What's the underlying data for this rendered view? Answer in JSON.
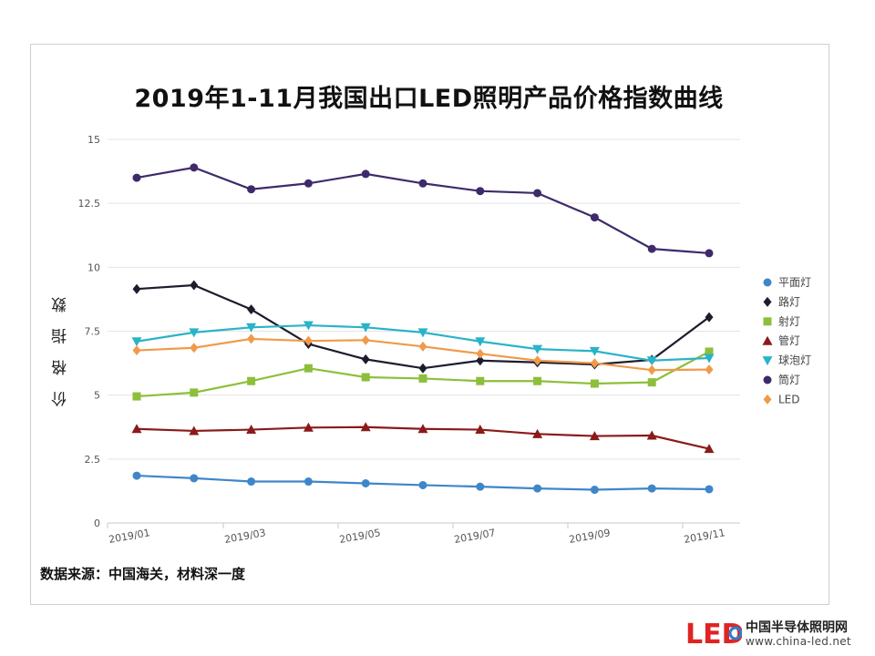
{
  "chart_data": {
    "type": "line",
    "title": "2019年1-11月我国出口LED照明产品价格指数曲线",
    "ylabel": "价 格 指 数",
    "ylim": [
      0,
      15
    ],
    "yticks": [
      "0",
      "2.5",
      "5",
      "7.5",
      "10",
      "12.5",
      "15"
    ],
    "ytick_values": [
      0,
      2.5,
      5,
      7.5,
      10,
      12.5,
      15
    ],
    "xtick_labels": [
      "2019/01",
      "2019/03",
      "2019/05",
      "2019/07",
      "2019/09",
      "2019/11"
    ],
    "x": [
      "2019/01",
      "2019/02",
      "2019/03",
      "2019/04",
      "2019/05",
      "2019/06",
      "2019/07",
      "2019/08",
      "2019/09",
      "2019/10",
      "2019/11"
    ],
    "grid": true,
    "legend_position": "right",
    "series": [
      {
        "name": "平面灯",
        "color": "#3f86c8",
        "marker": "circle",
        "values": [
          1.85,
          1.75,
          1.62,
          1.62,
          1.55,
          1.48,
          1.42,
          1.35,
          1.3,
          1.35,
          1.32
        ]
      },
      {
        "name": "路灯",
        "color": "#1c1c2e",
        "marker": "diamond",
        "values": [
          9.15,
          9.3,
          8.35,
          7.0,
          6.4,
          6.05,
          6.35,
          6.28,
          6.2,
          6.38,
          8.05
        ]
      },
      {
        "name": "射灯",
        "color": "#8dbf3a",
        "marker": "square",
        "values": [
          4.95,
          5.1,
          5.55,
          6.05,
          5.7,
          5.65,
          5.55,
          5.55,
          5.45,
          5.5,
          6.7
        ]
      },
      {
        "name": "管灯",
        "color": "#8b1a1a",
        "marker": "triangle",
        "values": [
          3.68,
          3.6,
          3.65,
          3.73,
          3.75,
          3.68,
          3.65,
          3.48,
          3.4,
          3.42,
          2.9
        ]
      },
      {
        "name": "球泡灯",
        "color": "#2ab3c8",
        "marker": "tri-down",
        "values": [
          7.1,
          7.45,
          7.65,
          7.73,
          7.65,
          7.45,
          7.1,
          6.8,
          6.72,
          6.35,
          6.45
        ]
      },
      {
        "name": "筒灯",
        "color": "#3e2a6b",
        "marker": "circle",
        "values": [
          13.5,
          13.9,
          13.05,
          13.28,
          13.65,
          13.28,
          12.98,
          12.9,
          11.95,
          10.72,
          10.55
        ]
      },
      {
        "name": "LED",
        "color": "#f09a4a",
        "marker": "diamond",
        "values": [
          6.75,
          6.85,
          7.2,
          7.12,
          7.15,
          6.9,
          6.62,
          6.35,
          6.25,
          5.98,
          6.0
        ]
      }
    ]
  },
  "source_note": "数据来源：中国海关，材料深一度",
  "logo": {
    "mark": "LED",
    "name": "中国半导体照明网",
    "url": "www.china-led.net"
  }
}
